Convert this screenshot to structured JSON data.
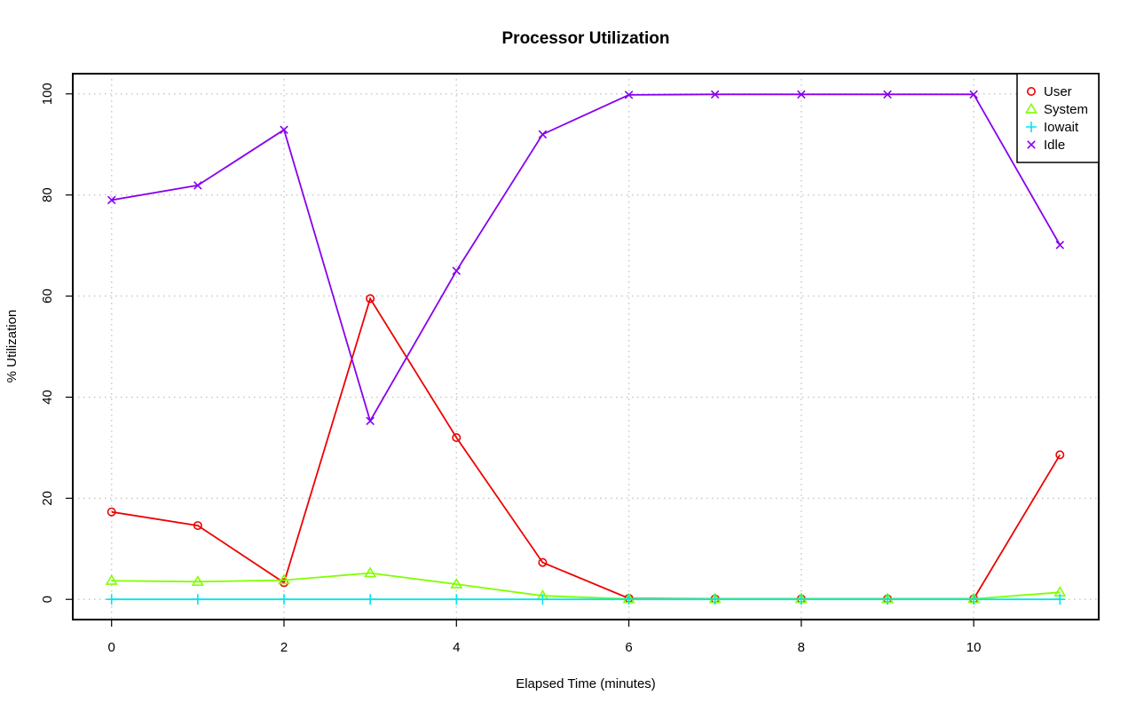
{
  "chart_data": {
    "type": "line",
    "title": "Processor Utilization",
    "xlabel": "Elapsed Time (minutes)",
    "ylabel": "% Utilization",
    "x": [
      0,
      1,
      2,
      3,
      4,
      5,
      6,
      7,
      8,
      9,
      10,
      11
    ],
    "xlim": [
      -0.45,
      11.45
    ],
    "ylim": [
      -4,
      104
    ],
    "x_ticks": [
      0,
      2,
      4,
      6,
      8,
      10
    ],
    "y_ticks": [
      0,
      20,
      40,
      60,
      80,
      100
    ],
    "grid": true,
    "legend_position": "top-right",
    "series": [
      {
        "name": "User",
        "color": "#ee0000",
        "marker": "circle",
        "values": [
          17.3,
          14.6,
          3.3,
          59.5,
          32.0,
          7.3,
          0.2,
          0.1,
          0.1,
          0.1,
          0.1,
          28.6
        ]
      },
      {
        "name": "System",
        "color": "#80ff00",
        "marker": "triangle",
        "values": [
          3.7,
          3.5,
          3.8,
          5.2,
          3.0,
          0.7,
          0.1,
          0.1,
          0.1,
          0.1,
          0.1,
          1.4
        ]
      },
      {
        "name": "Iowait",
        "color": "#00e5ee",
        "marker": "plus",
        "values": [
          0,
          0,
          0,
          0,
          0,
          0,
          0,
          0,
          0,
          0,
          0,
          0
        ]
      },
      {
        "name": "Idle",
        "color": "#8800ee",
        "marker": "cross",
        "values": [
          79.0,
          81.9,
          92.9,
          35.3,
          65.0,
          92.0,
          99.8,
          99.9,
          99.9,
          99.9,
          99.9,
          70.1
        ]
      }
    ]
  }
}
